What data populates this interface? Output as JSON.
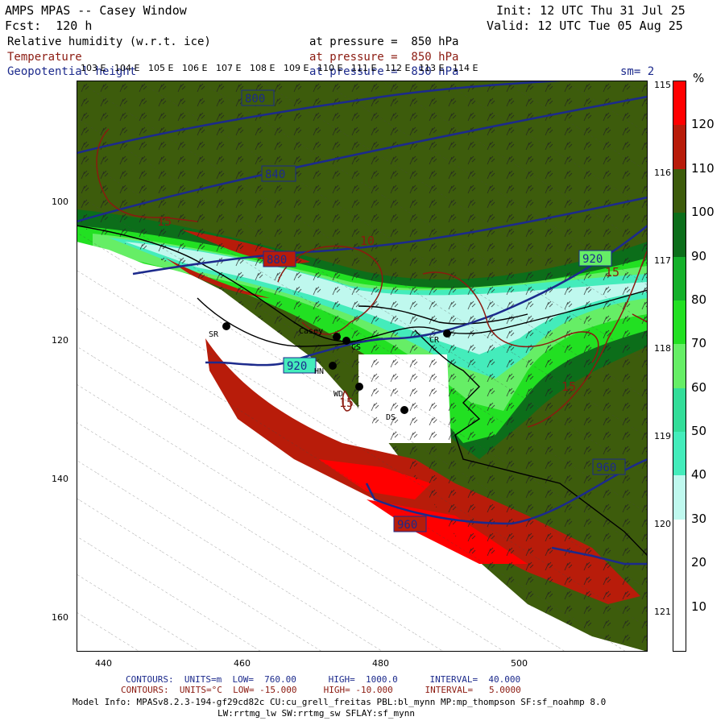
{
  "header": {
    "title": "AMPS MPAS -- Casey Window",
    "forecast": "Fcst:  120 h",
    "init": "Init: 12 UTC Thu 31 Jul 25",
    "valid": "Valid: 12 UTC Tue 05 Aug 25",
    "field1_name": "Relative humidity (w.r.t. ice)",
    "field1_level": "at pressure =  850 hPa",
    "field2_name": "Temperature",
    "field2_level": "at pressure =  850 hPa",
    "field3_name": "Geopotential height",
    "field3_level": "at pressure =  850 hPa",
    "smoothing": "sm= 2"
  },
  "colors": {
    "background": "#ffffff",
    "height_contour": "#1c2a8c",
    "temp_contour": "#8b1a10",
    "coast": "#000000"
  },
  "colorbar": {
    "unit": "%",
    "ticks": [
      "120",
      "110",
      "100",
      "90",
      "80",
      "70",
      "60",
      "50",
      "40",
      "30",
      "20",
      "10"
    ],
    "bins": [
      {
        "color": "#ff0000"
      },
      {
        "color": "#b81c0a"
      },
      {
        "color": "#3d5c0c"
      },
      {
        "color": "#0c6e1a"
      },
      {
        "color": "#14b02a"
      },
      {
        "color": "#22e022"
      },
      {
        "color": "#66ee66"
      },
      {
        "color": "#33dd99"
      },
      {
        "color": "#44ecbb"
      },
      {
        "color": "#bff8ee"
      },
      {
        "color": "#ffffff"
      },
      {
        "color": "#ffffff"
      },
      {
        "color": "#ffffff"
      }
    ]
  },
  "axes": {
    "x_ticks": [
      "440",
      "460",
      "480",
      "500"
    ],
    "y_ticks": [
      "100",
      "120",
      "140",
      "160"
    ],
    "lon_top": [
      "103 E",
      "104 E",
      "105 E",
      "106 E",
      "107 E",
      "108 E",
      "109 E",
      "110 E",
      "111 E",
      "112 E",
      "113 E",
      "114 E"
    ],
    "lon_right": [
      "115 E",
      "116 E",
      "117 E",
      "118 E",
      "119 E",
      "120 E",
      "121 E"
    ]
  },
  "contour_labels": {
    "height": [
      "800",
      "840",
      "880",
      "920",
      "920",
      "960",
      "960"
    ],
    "temp": [
      "15",
      "15",
      "15",
      "10",
      "15"
    ]
  },
  "stations": [
    {
      "code": "SR"
    },
    {
      "code": "Casey"
    },
    {
      "code": "CS"
    },
    {
      "code": "CR"
    },
    {
      "code": "HN"
    },
    {
      "code": "WD"
    },
    {
      "code": "DS"
    }
  ],
  "footer": {
    "contours_height": "CONTOURS:  UNITS=m  LOW=  760.00      HIGH=  1000.0      INTERVAL=  40.000",
    "contours_temp": "CONTOURS:  UNITS=°C  LOW= -15.000     HIGH= -10.000      INTERVAL=   5.0000",
    "model_info": "Model Info: MPASv8.2.3-194-gf29cd82c CU:cu_grell_freitas PBL:bl_mynn MP:mp_thompson SF:sf_noahmp 8.0",
    "model_info2": "LW:rrtmg_lw SW:rrtmg_sw SFLAY:sf_mynn"
  }
}
